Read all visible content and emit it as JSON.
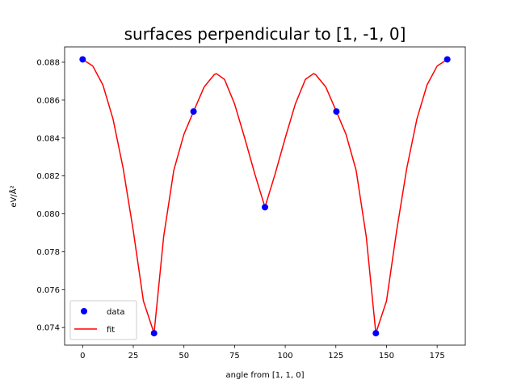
{
  "chart_data": {
    "type": "scatter",
    "title": "surfaces perpendicular to [1, -1, 0]",
    "xlabel": "angle from [1, 1, 0]",
    "ylabel": "eV/Å²",
    "xlim": [
      -8.9,
      188.9
    ],
    "ylim": [
      0.07307,
      0.08881
    ],
    "xticks": [
      0,
      25,
      50,
      75,
      100,
      125,
      150,
      175
    ],
    "xtick_labels": [
      "0",
      "25",
      "50",
      "75",
      "100",
      "125",
      "150",
      "175"
    ],
    "yticks": [
      0.074,
      0.076,
      0.078,
      0.08,
      0.082,
      0.084,
      0.086,
      0.088
    ],
    "ytick_labels": [
      "0.074",
      "0.076",
      "0.078",
      "0.080",
      "0.082",
      "0.084",
      "0.086",
      "0.088"
    ],
    "grid": false,
    "legend_position": "lower-left",
    "series": [
      {
        "name": "data",
        "kind": "scatter",
        "color": "#0000ff",
        "x": [
          0,
          35.26,
          54.74,
          90,
          125.26,
          144.74,
          180
        ],
        "y": [
          0.08815,
          0.0737,
          0.0854,
          0.08035,
          0.0854,
          0.0737,
          0.08815
        ]
      },
      {
        "name": "fit",
        "kind": "line",
        "color": "#ff0000",
        "x": [
          0,
          5,
          10,
          15,
          20,
          25,
          30,
          35.26,
          40,
          45,
          50,
          54.74,
          60,
          65,
          66,
          70,
          75,
          80,
          85,
          90,
          95,
          100,
          105,
          110,
          114,
          115,
          120,
          125.26,
          130,
          135,
          140,
          144.74,
          150,
          155,
          160,
          165,
          170,
          175,
          180
        ],
        "y": [
          0.08815,
          0.0878,
          0.0868,
          0.085,
          0.0824,
          0.0791,
          0.0754,
          0.0737,
          0.0788,
          0.0823,
          0.0842,
          0.0854,
          0.0867,
          0.08735,
          0.0874,
          0.0871,
          0.0858,
          0.084,
          0.0821,
          0.08035,
          0.0821,
          0.084,
          0.0858,
          0.0871,
          0.0874,
          0.08735,
          0.0867,
          0.0854,
          0.0842,
          0.0823,
          0.0788,
          0.0737,
          0.0754,
          0.0791,
          0.0824,
          0.085,
          0.0868,
          0.0878,
          0.08815
        ]
      }
    ]
  }
}
